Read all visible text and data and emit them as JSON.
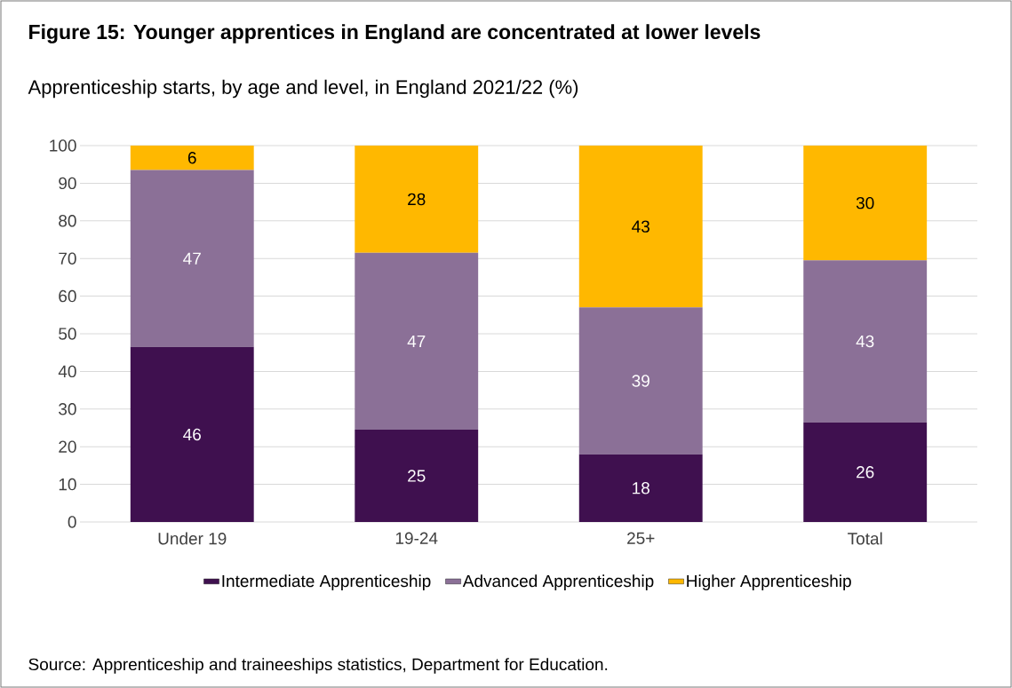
{
  "chart_data": {
    "type": "bar",
    "stacked": true,
    "title": "Figure 15: Younger apprentices in England are concentrated at lower levels",
    "subtitle": "Apprenticeship starts, by age and level, in England 2021/22 (%)",
    "categories": [
      "Under 19",
      "19-24",
      "25+",
      "Total"
    ],
    "series": [
      {
        "name": "Intermediate Apprenticeship",
        "color": "#3f104f",
        "values": [
          46.5,
          24.5,
          18,
          26.5
        ],
        "value_labels": [
          "46",
          "25",
          "18",
          "26"
        ]
      },
      {
        "name": "Advanced Apprenticeship",
        "color": "#8b7097",
        "values": [
          47,
          47,
          39,
          43
        ],
        "value_labels": [
          "47",
          "47",
          "39",
          "43"
        ]
      },
      {
        "name": "Higher Apprenticeship",
        "color": "#ffb800",
        "values": [
          6.5,
          28.5,
          43,
          30.5
        ],
        "value_labels": [
          "6",
          "28",
          "43",
          "30"
        ]
      }
    ],
    "ylim": [
      0,
      100
    ],
    "yticks": [
      0,
      10,
      20,
      30,
      40,
      50,
      60,
      70,
      80,
      90,
      100
    ],
    "grid": "y",
    "legend": "bottom",
    "annotations": [
      "Source: Apprenticeship and traineeships statistics, Department for Education."
    ]
  }
}
